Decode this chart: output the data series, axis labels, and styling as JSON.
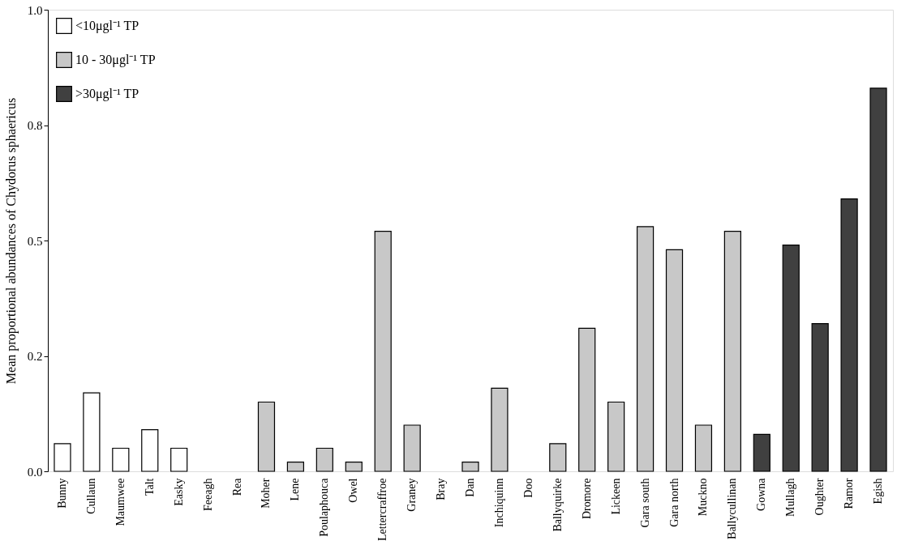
{
  "chart_data": {
    "type": "bar",
    "ylabel": "Mean proportional abundances of Chydorus sphaericus",
    "categories": [
      "Bunny",
      "Cullaun",
      "Maumwee",
      "Talt",
      "Easky",
      "Feeagh",
      "Rea",
      "Moher",
      "Lene",
      "Poulaphouca",
      "Owel",
      "Lettercraffroe",
      "Graney",
      "Bray",
      "Dan",
      "Inchiquinn",
      "Doo",
      "Ballyquirke",
      "Dromore",
      "Lickeen",
      "Gara south",
      "Gara north",
      "Muckno",
      "Ballycullinan",
      "Gowna",
      "Mullagh",
      "Oughter",
      "Ramor",
      "Egish"
    ],
    "series": [
      {
        "name": "<10μgl⁻¹ TP",
        "color": "#ffffff",
        "values": [
          0.06,
          0.17,
          0.05,
          0.09,
          0.05,
          null,
          null,
          null,
          null,
          null,
          null,
          null,
          null,
          null,
          null,
          null,
          null,
          null,
          null,
          null,
          null,
          null,
          null,
          null,
          null,
          null,
          null,
          null,
          null
        ]
      },
      {
        "name": "10 - 30μgl⁻¹ TP",
        "color": "#c8c8c8",
        "values": [
          null,
          null,
          null,
          null,
          null,
          null,
          null,
          0.15,
          0.02,
          0.05,
          0.02,
          0.52,
          0.1,
          null,
          0.02,
          0.18,
          null,
          0.06,
          0.31,
          0.15,
          0.53,
          0.48,
          0.1,
          0.52,
          null,
          null,
          null,
          null,
          null
        ]
      },
      {
        "name": ">30μgl⁻¹ TP",
        "color": "#404040",
        "values": [
          null,
          null,
          null,
          null,
          null,
          null,
          null,
          null,
          null,
          null,
          null,
          null,
          null,
          null,
          null,
          null,
          null,
          null,
          null,
          null,
          null,
          null,
          null,
          null,
          0.08,
          0.49,
          0.32,
          0.59,
          0.83
        ]
      }
    ],
    "ylim": [
      0,
      1
    ],
    "yticks": [
      {
        "value": 0,
        "label": "0.0"
      },
      {
        "value": 0.25,
        "label": "0.2"
      },
      0.5,
      {
        "value": 0.75,
        "label": "0.8"
      },
      {
        "value": 1,
        "label": "1.0"
      }
    ],
    "grid": false,
    "legend": "top left"
  }
}
